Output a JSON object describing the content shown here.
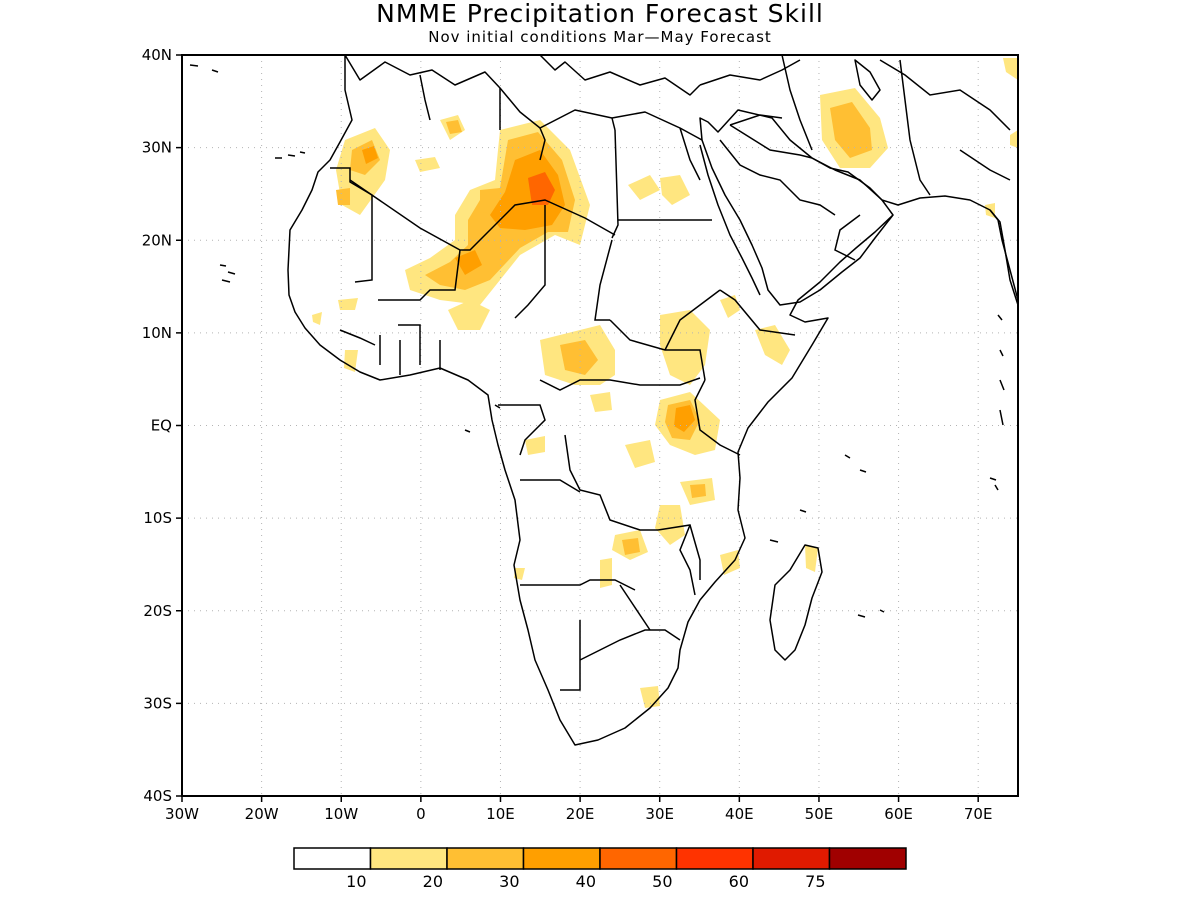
{
  "title": "NMME Precipitation Forecast Skill",
  "subtitle": "Nov initial conditions  Mar—May Forecast",
  "map": {
    "region": "Africa",
    "lon_range": [
      -30,
      75
    ],
    "lat_range": [
      -40,
      40
    ],
    "lat_ticks": [
      {
        "value": 40,
        "label": "40N"
      },
      {
        "value": 30,
        "label": "30N"
      },
      {
        "value": 20,
        "label": "20N"
      },
      {
        "value": 10,
        "label": "10N"
      },
      {
        "value": 0,
        "label": "EQ"
      },
      {
        "value": -10,
        "label": "10S"
      },
      {
        "value": -20,
        "label": "20S"
      },
      {
        "value": -30,
        "label": "30S"
      },
      {
        "value": -40,
        "label": "40S"
      }
    ],
    "lon_ticks": [
      {
        "value": -30,
        "label": "30W"
      },
      {
        "value": -20,
        "label": "20W"
      },
      {
        "value": -10,
        "label": "10W"
      },
      {
        "value": 0,
        "label": "0"
      },
      {
        "value": 10,
        "label": "10E"
      },
      {
        "value": 20,
        "label": "20E"
      },
      {
        "value": 30,
        "label": "30E"
      },
      {
        "value": 40,
        "label": "40E"
      },
      {
        "value": 50,
        "label": "50E"
      },
      {
        "value": 60,
        "label": "60E"
      },
      {
        "value": 70,
        "label": "70E"
      }
    ],
    "grid": true
  },
  "colorbar": {
    "colors": [
      "#ffffff",
      "#ffe680",
      "#ffbf33",
      "#ff9f00",
      "#ff6600",
      "#ff3300",
      "#e01a00",
      "#a00000"
    ],
    "labels": [
      "10",
      "20",
      "30",
      "40",
      "50",
      "60",
      "75"
    ]
  },
  "colors": {
    "level1": "#ffe680",
    "level2": "#ffbf33",
    "level3": "#ff9f00",
    "level4": "#ff6600",
    "coast": "#000000",
    "grid": "#b4b4b4"
  }
}
